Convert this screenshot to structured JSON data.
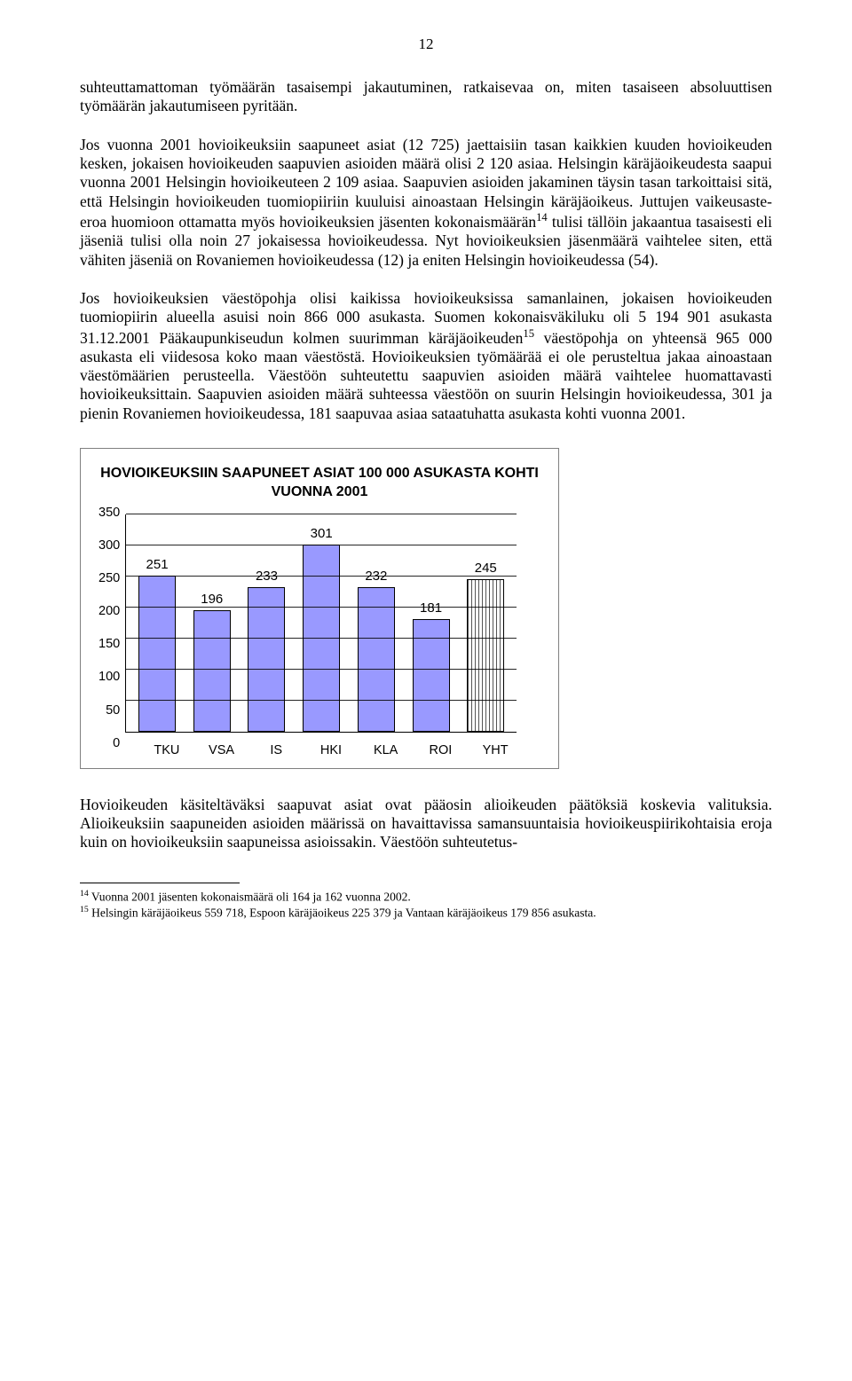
{
  "pageNumber": "12",
  "para1": "suhteuttamattoman työmäärän tasaisempi jakautuminen, ratkaisevaa on, miten tasaiseen absoluuttisen työmäärän jakautumiseen pyritään.",
  "para2": "Jos vuonna 2001 hovioikeuksiin saapuneet asiat (12 725) jaettaisiin tasan kaikkien kuuden hovioikeuden kesken, jokaisen hovioikeuden saapuvien asioiden määrä olisi 2 120 asiaa. Helsingin käräjäoikeudesta saapui vuonna 2001 Helsingin hovioikeuteen 2 109 asiaa. Saapuvien asioiden jakaminen täysin tasan tarkoittaisi sitä, että Helsingin hovioikeuden tuomiopiiriin kuuluisi ainoastaan Helsingin käräjäoikeus. Juttujen vaikeusaste-eroa huomioon ottamatta myös hovioikeuksien jäsenten kokonaismäärän",
  "sup14": "14",
  "para2b": " tulisi tällöin jakaantua tasaisesti eli jäseniä tulisi olla noin 27 jokaisessa hovioikeudessa. Nyt hovioikeuksien jäsenmäärä vaihtelee siten, että vähiten jäseniä on Rovaniemen hovioikeudessa (12) ja eniten Helsingin hovioikeudessa (54).",
  "para3a": "Jos hovioikeuksien väestöpohja olisi kaikissa hovioikeuksissa samanlainen, jokaisen hovioikeuden tuomiopiirin alueella asuisi noin 866 000 asukasta. Suomen kokonaisväkiluku oli 5 194 901 asukasta 31.12.2001 Pääkaupunkiseudun kolmen suurimman käräjäoikeuden",
  "sup15": "15",
  "para3b": " väestöpohja on yhteensä 965 000 asukasta eli viidesosa koko maan väestöstä. Hovioikeuksien työmäärää ei ole perusteltua jakaa ainoastaan väestömäärien perusteella. Väestöön suhteutettu saapuvien asioiden määrä vaihtelee huomattavasti hovioikeuksittain. Saapuvien asioiden määrä suhteessa väestöön on suurin Helsingin hovioikeudessa, 301 ja pienin Rovaniemen hovioikeudessa, 181 saapuvaa asiaa sataatuhatta asukasta kohti vuonna 2001.",
  "chart": {
    "title": "HOVIOIKEUKSIIN SAAPUNEET ASIAT 100 000 ASUKASTA KOHTI VUONNA 2001",
    "ymax": 350,
    "yticks": [
      "350",
      "300",
      "250",
      "200",
      "150",
      "100",
      "50",
      "0"
    ],
    "barColor": "#9999ff",
    "hatchColor": "#555555",
    "categories": [
      "TKU",
      "VSA",
      "IS",
      "HKI",
      "KLA",
      "ROI",
      "YHT"
    ],
    "values": [
      251,
      196,
      233,
      301,
      232,
      181,
      245
    ],
    "styles": [
      "solid",
      "solid",
      "solid",
      "solid",
      "solid",
      "solid",
      "hatch"
    ]
  },
  "para4": "Hovioikeuden käsiteltäväksi saapuvat asiat ovat pääosin alioikeuden päätöksiä koskevia valituksia. Alioikeuksiin saapuneiden asioiden määrissä on havaittavissa samansuuntaisia hovioikeuspiirikohtaisia eroja kuin on hovioikeuksiin saapuneissa asioissakin. Väestöön suhteutetus-",
  "fn14label": "14",
  "fn14": " Vuonna 2001 jäsenten kokonaismäärä oli 164 ja 162 vuonna 2002.",
  "fn15label": "15",
  "fn15": " Helsingin käräjäoikeus 559 718, Espoon käräjäoikeus 225 379 ja Vantaan käräjäoikeus 179 856 asukasta."
}
